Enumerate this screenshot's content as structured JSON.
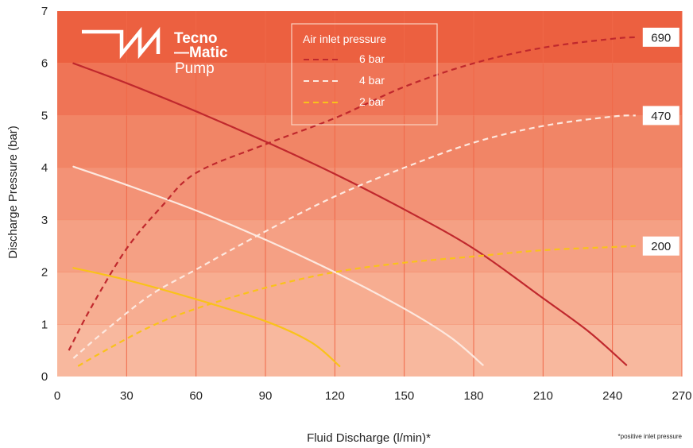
{
  "chart_data": {
    "type": "line",
    "xlabel": "Fluid Discharge (l/min)*",
    "ylabel": "Discharge Pressure (bar)",
    "footnote": "*positive inlet pressure",
    "xlim": [
      0,
      270
    ],
    "ylim": [
      0,
      7
    ],
    "xticks": [
      0,
      30,
      60,
      90,
      120,
      150,
      180,
      210,
      240,
      270
    ],
    "yticks": [
      0,
      1,
      2,
      3,
      4,
      5,
      6,
      7
    ],
    "grid": true,
    "legend": {
      "title": "Air inlet pressure",
      "placement": "top-center",
      "entries": [
        {
          "label": "6 bar",
          "color": "#c0282d",
          "style": "dashed"
        },
        {
          "label": "4 bar",
          "color": "#fde8df",
          "style": "dashed"
        },
        {
          "label": "2 bar",
          "color": "#f9c21a",
          "style": "dashed"
        }
      ]
    },
    "bands": [
      {
        "from": 0,
        "to": 1,
        "color": "#f8b89e"
      },
      {
        "from": 1,
        "to": 2,
        "color": "#f7ad91"
      },
      {
        "from": 2,
        "to": 3,
        "color": "#f5a084"
      },
      {
        "from": 3,
        "to": 4,
        "color": "#f39276"
      },
      {
        "from": 4,
        "to": 5,
        "color": "#f18566"
      },
      {
        "from": 5,
        "to": 6,
        "color": "#ef7456"
      },
      {
        "from": 6,
        "to": 7,
        "color": "#ec6040"
      }
    ],
    "series": [
      {
        "group": "6 bar",
        "kind": "pressure",
        "style": "solid",
        "color": "#c0282d",
        "x": [
          7,
          30,
          60,
          90,
          120,
          150,
          180,
          210,
          230,
          246
        ],
        "y": [
          6.0,
          5.62,
          5.08,
          4.5,
          3.88,
          3.2,
          2.45,
          1.5,
          0.85,
          0.22
        ]
      },
      {
        "group": "4 bar",
        "kind": "pressure",
        "style": "solid",
        "color": "#fde8df",
        "x": [
          7,
          30,
          60,
          90,
          120,
          150,
          170,
          184
        ],
        "y": [
          4.02,
          3.67,
          3.18,
          2.62,
          2.0,
          1.3,
          0.75,
          0.22
        ]
      },
      {
        "group": "2 bar",
        "kind": "pressure",
        "style": "solid",
        "color": "#f9c21a",
        "x": [
          7,
          30,
          60,
          90,
          110,
          122
        ],
        "y": [
          2.08,
          1.85,
          1.48,
          1.06,
          0.65,
          0.2
        ]
      },
      {
        "group": "6 bar",
        "kind": "air",
        "style": "dashed",
        "color": "#c0282d",
        "end_label": "690",
        "x": [
          5,
          15,
          30,
          45,
          60,
          90,
          120,
          150,
          180,
          210,
          240,
          250
        ],
        "y": [
          0.5,
          1.35,
          2.45,
          3.25,
          3.9,
          4.45,
          4.95,
          5.55,
          6.0,
          6.3,
          6.47,
          6.5
        ]
      },
      {
        "group": "4 bar",
        "kind": "air",
        "style": "dashed",
        "color": "#fde8df",
        "end_label": "470",
        "x": [
          7,
          20,
          40,
          60,
          90,
          120,
          150,
          180,
          210,
          240,
          250
        ],
        "y": [
          0.35,
          0.85,
          1.55,
          2.05,
          2.78,
          3.45,
          4.0,
          4.48,
          4.8,
          4.98,
          5.0
        ]
      },
      {
        "group": "2 bar",
        "kind": "air",
        "style": "dashed",
        "color": "#f9c21a",
        "end_label": "200",
        "x": [
          9,
          20,
          40,
          60,
          90,
          120,
          150,
          180,
          210,
          240,
          250
        ],
        "y": [
          0.2,
          0.48,
          0.95,
          1.3,
          1.7,
          2.0,
          2.18,
          2.3,
          2.42,
          2.48,
          2.5
        ]
      }
    ]
  },
  "logo": {
    "line1": "Tecno",
    "line2": "—Matic",
    "line3": "Pump"
  }
}
